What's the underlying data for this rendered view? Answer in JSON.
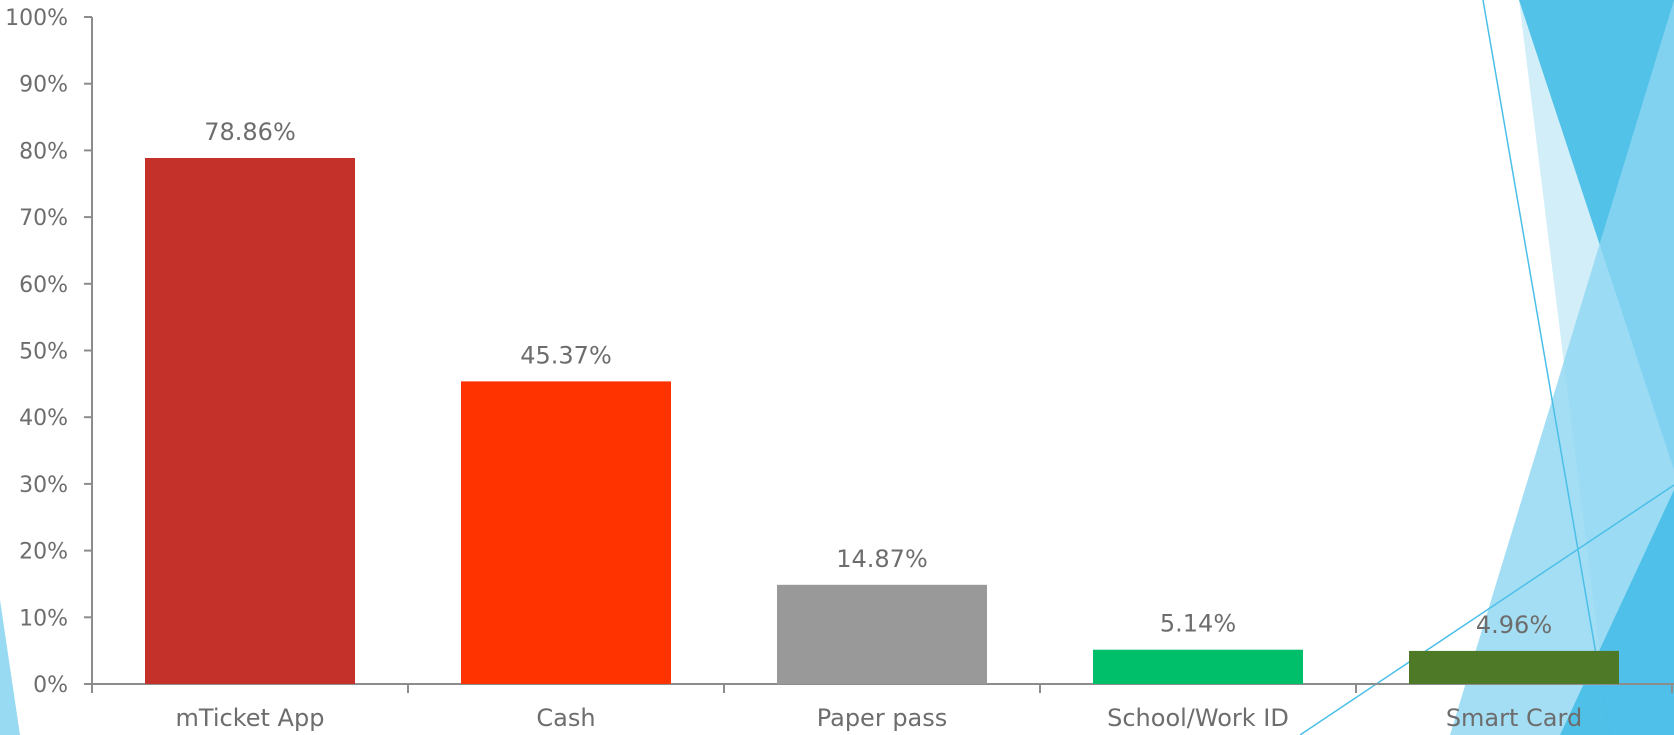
{
  "chart_data": {
    "type": "bar",
    "categories": [
      "mTicket App",
      "Cash",
      "Paper pass",
      "School/Work ID",
      "Smart Card"
    ],
    "values": [
      78.86,
      45.37,
      14.87,
      5.14,
      4.96
    ],
    "data_labels": [
      "78.86%",
      "45.37%",
      "14.87%",
      "5.14%",
      "4.96%"
    ],
    "colors": [
      "#c3312a",
      "#ff3300",
      "#999999",
      "#00bf6a",
      "#4e7a28"
    ],
    "ylim": [
      0,
      100
    ],
    "y_ticks": [
      0,
      10,
      20,
      30,
      40,
      50,
      60,
      70,
      80,
      90,
      100
    ],
    "y_tick_labels": [
      "0%",
      "10%",
      "20%",
      "30%",
      "40%",
      "50%",
      "60%",
      "70%",
      "80%",
      "90%",
      "100%"
    ],
    "grid": false,
    "legend": "none",
    "title": "",
    "xlabel": "",
    "ylabel": "",
    "axis_color": "#8c8c8c",
    "decoration_colors": [
      "#4bbfe8",
      "#8dd6f1",
      "#c9ebf8"
    ]
  }
}
